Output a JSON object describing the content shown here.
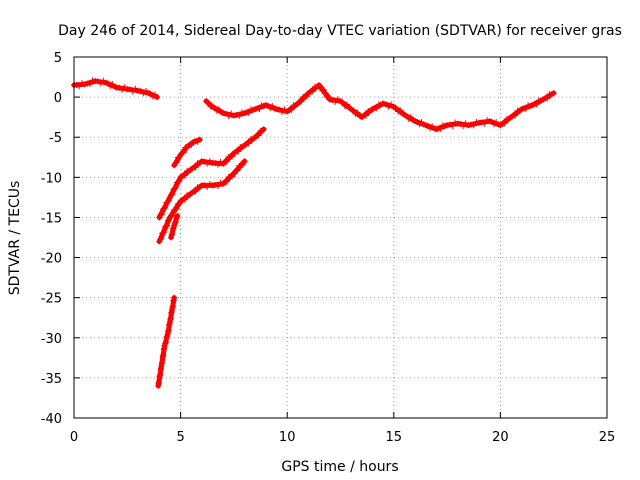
{
  "chart_data": {
    "type": "scatter",
    "title": "Day 246 of 2014, Sidereal Day-to-day VTEC variation (SDTVAR) for receiver gras",
    "xlabel": "GPS time / hours",
    "ylabel": "SDTVAR / TECUs",
    "xlim": [
      0,
      25
    ],
    "ylim": [
      -40,
      5
    ],
    "xticks": [
      0,
      5,
      10,
      15,
      20,
      25
    ],
    "yticks": [
      5,
      0,
      -5,
      -10,
      -15,
      -20,
      -25,
      -30,
      -35,
      -40
    ],
    "grid": true,
    "marker": "plus",
    "color": "#ff0000",
    "series": [
      {
        "name": "main-trace-early",
        "x": [
          0.0,
          0.5,
          1.0,
          1.5,
          2.0,
          2.5,
          3.0,
          3.5,
          3.9
        ],
        "y": [
          1.5,
          1.6,
          2.0,
          1.8,
          1.2,
          1.0,
          0.8,
          0.5,
          0.0
        ]
      },
      {
        "name": "main-trace-late",
        "x": [
          6.2,
          6.5,
          7.0,
          7.5,
          8.0,
          8.5,
          9.0,
          9.5,
          10.0,
          10.5,
          11.0,
          11.5,
          12.0,
          12.5,
          13.0,
          13.5,
          14.0,
          14.5,
          15.0,
          15.5,
          16.0,
          16.5,
          17.0,
          17.5,
          18.0,
          18.5,
          19.0,
          19.5,
          20.0,
          20.5,
          21.0,
          21.5,
          22.0,
          22.5
        ],
        "y": [
          -0.5,
          -1.2,
          -2.0,
          -2.3,
          -2.0,
          -1.5,
          -1.0,
          -1.5,
          -1.8,
          -0.8,
          0.5,
          1.5,
          -0.3,
          -0.5,
          -1.5,
          -2.5,
          -1.5,
          -0.8,
          -1.2,
          -2.2,
          -3.0,
          -3.5,
          -4.0,
          -3.5,
          -3.3,
          -3.5,
          -3.2,
          -3.0,
          -3.5,
          -2.5,
          -1.5,
          -1.0,
          -0.3,
          0.5
        ]
      },
      {
        "name": "rise-upper",
        "x": [
          4.0,
          4.5,
          5.0,
          5.5,
          6.0,
          6.5,
          7.0,
          7.5,
          8.0,
          8.5,
          8.9
        ],
        "y": [
          -15.0,
          -12.5,
          -10.0,
          -9.0,
          -8.0,
          -8.2,
          -8.3,
          -7.0,
          -6.0,
          -5.0,
          -4.0
        ]
      },
      {
        "name": "rise-lower",
        "x": [
          4.0,
          4.5,
          5.0,
          5.5,
          6.0,
          6.5,
          7.0,
          7.5,
          8.0
        ],
        "y": [
          -18.0,
          -15.0,
          -13.0,
          -12.0,
          -11.0,
          -11.0,
          -10.8,
          -9.5,
          -8.0
        ]
      },
      {
        "name": "short-segment-a",
        "x": [
          4.7,
          5.0,
          5.3,
          5.6,
          5.9
        ],
        "y": [
          -8.5,
          -7.2,
          -6.2,
          -5.6,
          -5.3
        ]
      },
      {
        "name": "short-segment-b",
        "x": [
          4.55,
          4.7,
          4.85
        ],
        "y": [
          -17.5,
          -16.0,
          -14.8
        ]
      },
      {
        "name": "steep-segment",
        "x": [
          3.95,
          4.1,
          4.25,
          4.4,
          4.5,
          4.6,
          4.7
        ],
        "y": [
          -36.0,
          -33.5,
          -31.0,
          -29.5,
          -28.0,
          -26.5,
          -25.0
        ]
      }
    ]
  }
}
